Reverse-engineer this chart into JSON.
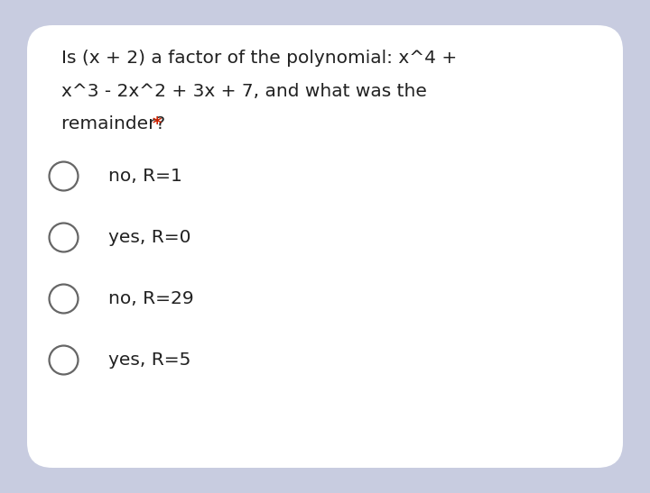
{
  "background_color": "#c8cce0",
  "card_color": "#ffffff",
  "question_line1": "Is (x + 2) a factor of the polynomial: x^4 +",
  "question_line2": "x^3 - 2x^2 + 3x + 7, and what was the",
  "question_line3": "remainder? ",
  "asterisk": "*",
  "asterisk_color": "#cc2200",
  "question_font_size": 14.5,
  "question_text_color": "#212121",
  "options": [
    "no, R=1",
    "yes, R=0",
    "no, R=29",
    "yes, R=5"
  ],
  "option_font_size": 14.5,
  "option_text_color": "#212121",
  "circle_color": "#666666",
  "circle_linewidth": 1.6
}
